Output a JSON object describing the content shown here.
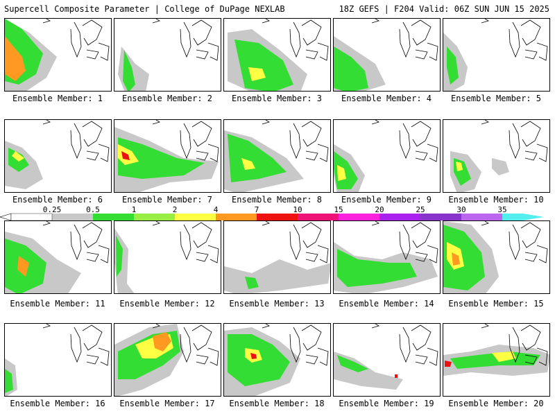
{
  "header": {
    "left": "Supercell Composite Parameter | College of DuPage NEXLAB",
    "right": "18Z GEFS | F204 Valid: 06Z SUN JUN 15 2025"
  },
  "panels": [
    {
      "label": "Ensemble Member: 1"
    },
    {
      "label": "Ensemble Member: 2"
    },
    {
      "label": "Ensemble Member: 3"
    },
    {
      "label": "Ensemble Member: 4"
    },
    {
      "label": "Ensemble Member: 5"
    },
    {
      "label": "Ensemble Member: 6"
    },
    {
      "label": "Ensemble Member: 7"
    },
    {
      "label": "Ensemble Member: 8"
    },
    {
      "label": "Ensemble Member: 9"
    },
    {
      "label": "Ensemble Member: 10"
    },
    {
      "label": "Ensemble Member: 11"
    },
    {
      "label": "Ensemble Member: 12"
    },
    {
      "label": "Ensemble Member: 13"
    },
    {
      "label": "Ensemble Member: 14"
    },
    {
      "label": "Ensemble Member: 15"
    },
    {
      "label": "Ensemble Member: 16"
    },
    {
      "label": "Ensemble Member: 17"
    },
    {
      "label": "Ensemble Member: 18"
    },
    {
      "label": "Ensemble Member: 19"
    },
    {
      "label": "Ensemble Member: 20"
    }
  ],
  "legend": {
    "ticks": [
      "0.25",
      "0.5",
      "1",
      "2",
      "4",
      "7",
      "10",
      "15",
      "20",
      "25",
      "30",
      "35"
    ],
    "colors": [
      "#c8c8c8",
      "#33dd33",
      "#99ee44",
      "#ffff44",
      "#ff9922",
      "#ee1111",
      "#ee1177",
      "#ff22dd",
      "#aa22ee",
      "#8833cc",
      "#bb66ee",
      "#55eeee"
    ]
  }
}
